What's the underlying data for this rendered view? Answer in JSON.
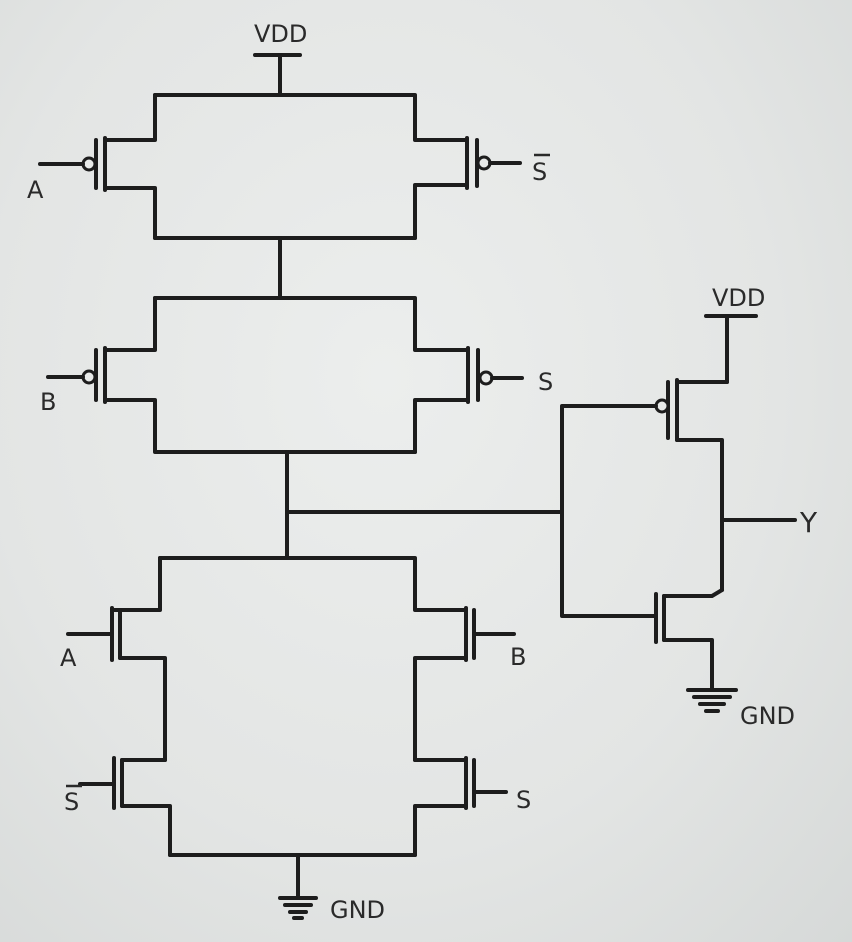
{
  "supply": {
    "vdd": "VDD",
    "gnd": "GND"
  },
  "inputs": {
    "a": "A",
    "b": "B",
    "s": "S",
    "s_bar": "S"
  },
  "output": {
    "y": "Y"
  }
}
